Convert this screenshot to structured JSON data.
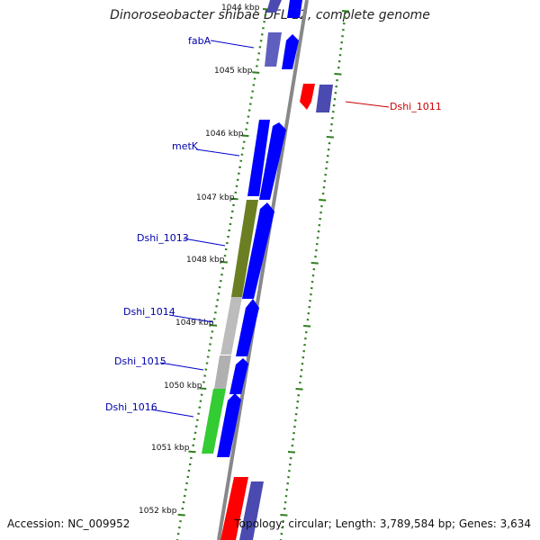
{
  "title": "Dinoroseobacter shibae DFL 12, complete genome",
  "accession": "Accession: NC_009952",
  "topology": "Topology: circular; Length: 3,789,584 bp; Genes: 3,634",
  "kbp_labels": [
    "1044 kbp",
    "1045 kbp",
    "1046 kbp",
    "1047 kbp",
    "1048 kbp",
    "1049 kbp",
    "1050 kbp",
    "1051 kbp",
    "1052 kbp"
  ],
  "gene_labels": [
    "fabA",
    "Dshi_1011",
    "metK",
    "Dshi_1013",
    "Dshi_1014",
    "Dshi_1015",
    "Dshi_1016"
  ],
  "colors": {
    "backbone": "#808080",
    "blue": "#0000ff",
    "slate": "#4a4ab0",
    "olive": "#6b7f22",
    "grey": "#b9b9b9",
    "green": "#33cc33",
    "red": "#ff0000",
    "tick_green": "#2e7d1e",
    "label_blue": "#0000aa",
    "label_red": "#cc0000"
  }
}
